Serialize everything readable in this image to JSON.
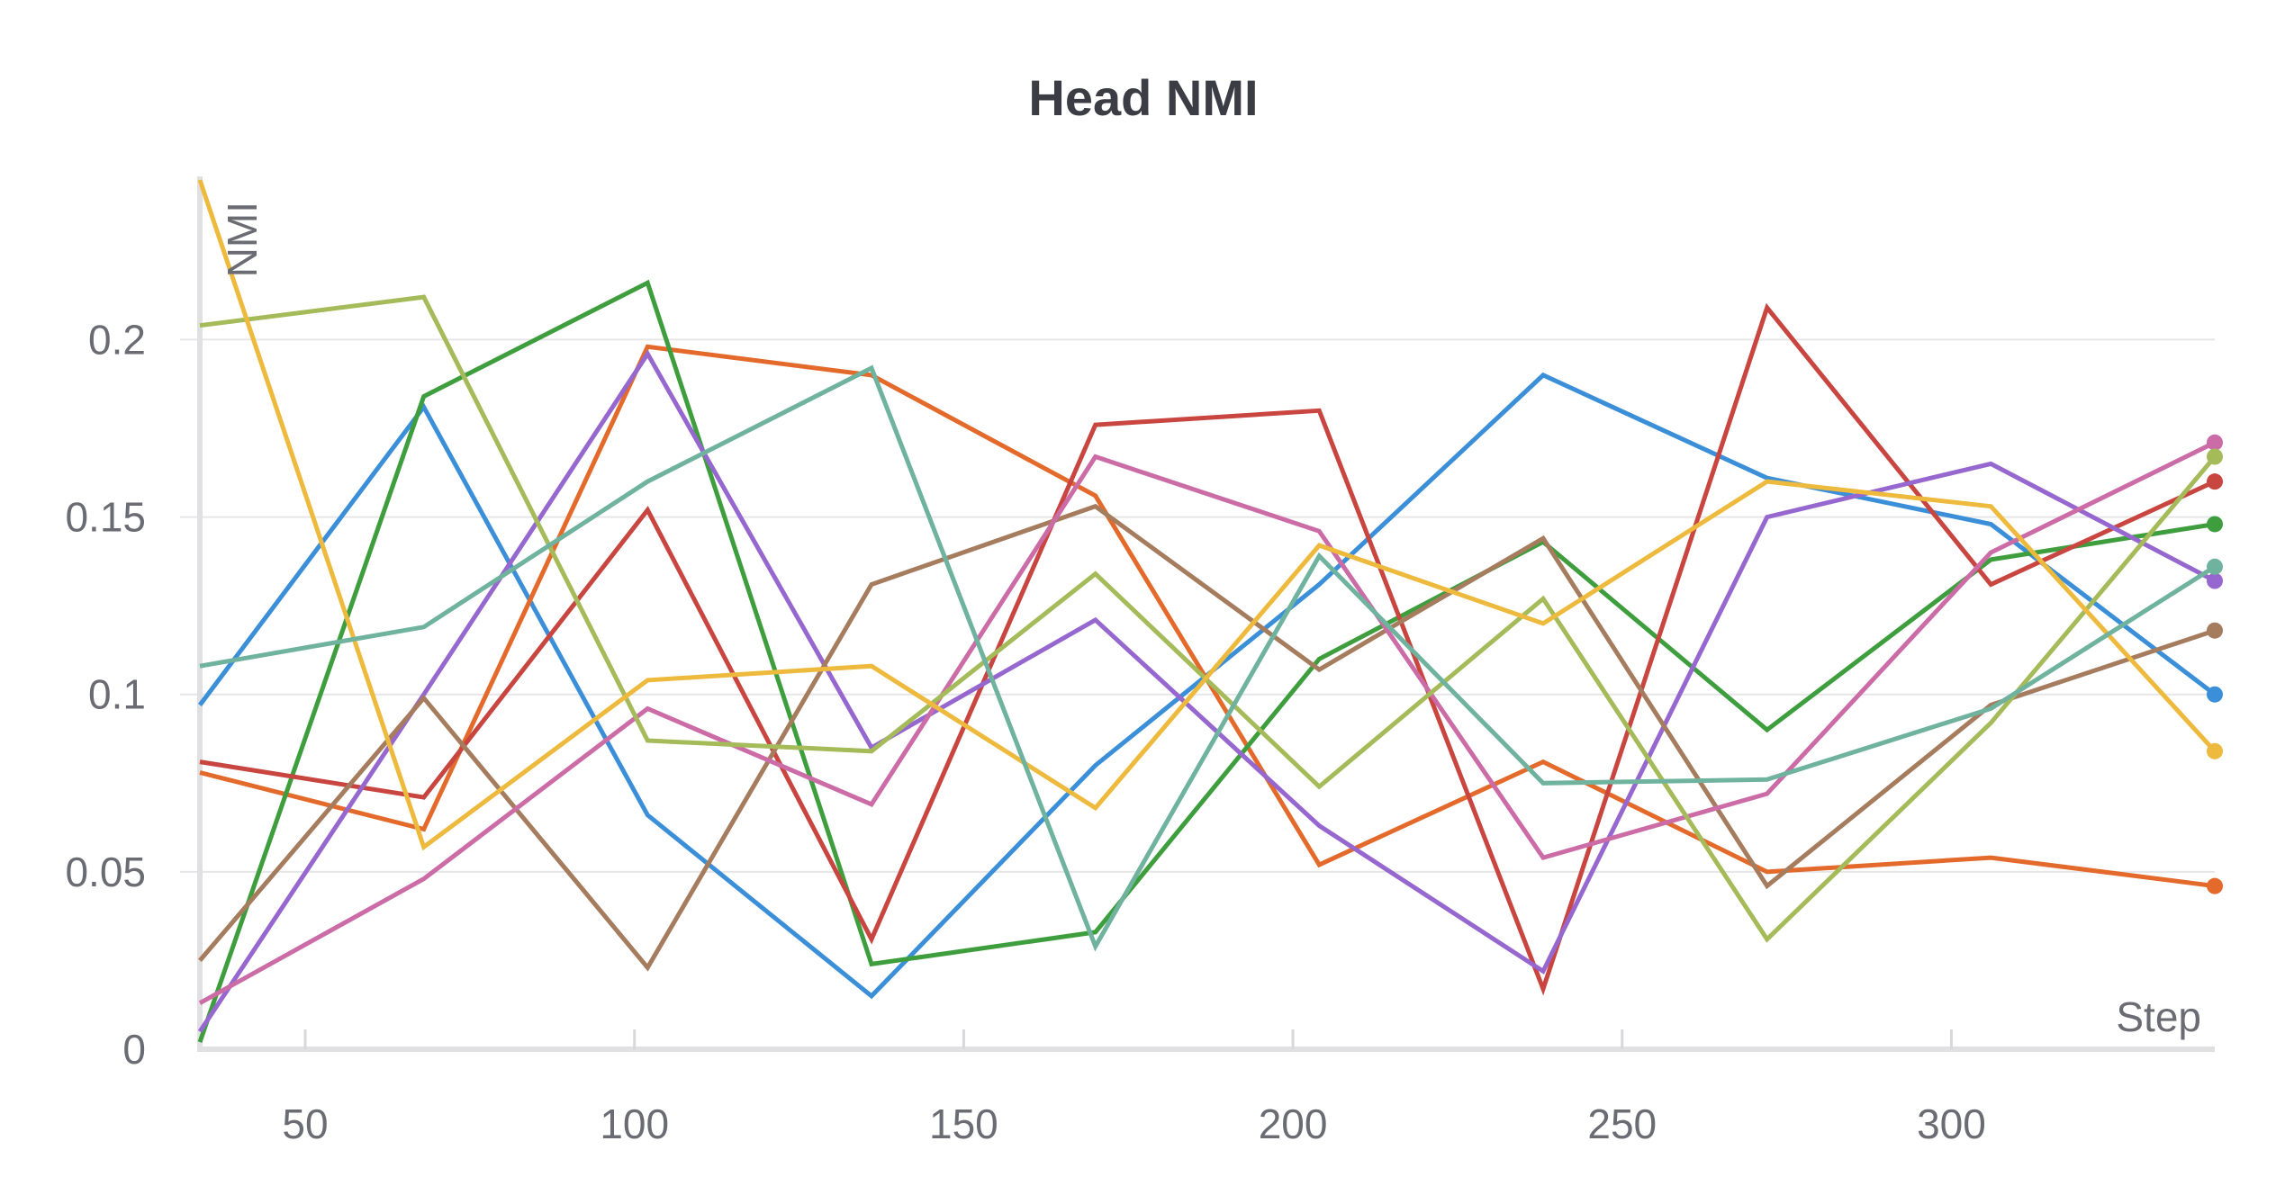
{
  "chart_data": {
    "type": "line",
    "title": "Head NMI",
    "xlabel": "Step",
    "ylabel": "NMI",
    "xlim": [
      34,
      340
    ],
    "ylim": [
      0,
      0.245
    ],
    "x": [
      34,
      68,
      102,
      136,
      170,
      204,
      238,
      272,
      306,
      340
    ],
    "x_ticks": [
      50,
      100,
      150,
      200,
      250,
      300
    ],
    "x_tick_labels": [
      "50",
      "100",
      "150",
      "200",
      "250",
      "300"
    ],
    "y_ticks": [
      0,
      0.05,
      0.1,
      0.15,
      0.2
    ],
    "y_tick_labels": [
      "0",
      "0.05",
      "0.1",
      "0.15",
      "0.2"
    ],
    "grid": true,
    "legend": "none",
    "series": [
      {
        "color": "#3a8fd8",
        "values": [
          0.097,
          0.181,
          0.066,
          0.015,
          0.08,
          0.131,
          0.19,
          0.161,
          0.148,
          0.1
        ]
      },
      {
        "color": "#e36a2b",
        "values": [
          0.078,
          0.062,
          0.198,
          0.19,
          0.156,
          0.052,
          0.081,
          0.05,
          0.054,
          0.046
        ]
      },
      {
        "color": "#3e9e3e",
        "values": [
          0.002,
          0.184,
          0.216,
          0.024,
          0.033,
          0.11,
          0.143,
          0.09,
          0.138,
          0.148
        ]
      },
      {
        "color": "#c84540",
        "values": [
          0.081,
          0.071,
          0.152,
          0.031,
          0.176,
          0.18,
          0.017,
          0.209,
          0.131,
          0.16
        ]
      },
      {
        "color": "#9668cf",
        "values": [
          0.005,
          0.1,
          0.196,
          0.085,
          0.121,
          0.063,
          0.022,
          0.15,
          0.165,
          0.132
        ]
      },
      {
        "color": "#a67c5e",
        "values": [
          0.025,
          0.099,
          0.023,
          0.131,
          0.153,
          0.107,
          0.144,
          0.046,
          0.097,
          0.118
        ]
      },
      {
        "color": "#cc6ca6",
        "values": [
          0.013,
          0.048,
          0.096,
          0.069,
          0.167,
          0.146,
          0.054,
          0.072,
          0.14,
          0.171
        ]
      },
      {
        "color": "#a5bb5a",
        "values": [
          0.204,
          0.212,
          0.087,
          0.084,
          0.134,
          0.074,
          0.127,
          0.031,
          0.092,
          0.167
        ]
      },
      {
        "color": "#eeba3e",
        "values": [
          0.245,
          0.057,
          0.104,
          0.108,
          0.068,
          0.142,
          0.12,
          0.16,
          0.153,
          0.084
        ]
      },
      {
        "color": "#6fb39e",
        "values": [
          0.108,
          0.119,
          0.16,
          0.192,
          0.029,
          0.139,
          0.075,
          0.076,
          0.096,
          0.136
        ]
      }
    ]
  }
}
